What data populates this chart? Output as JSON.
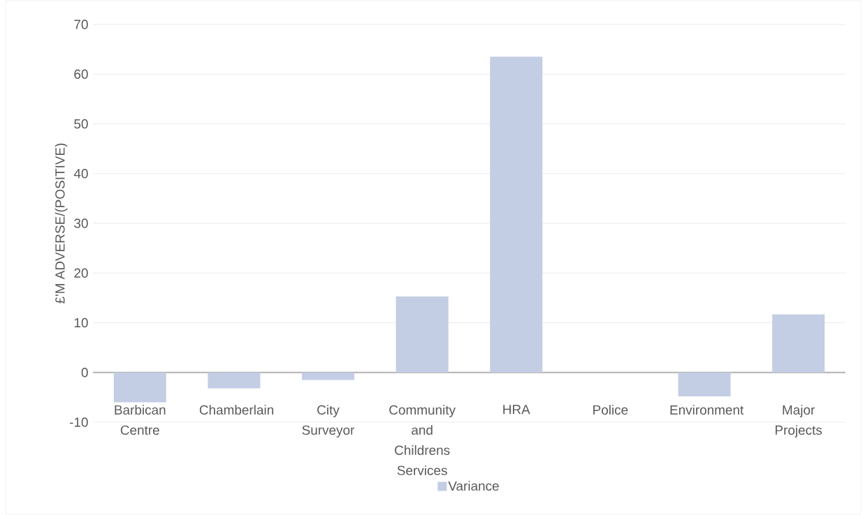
{
  "chart_data": {
    "type": "bar",
    "ylabel": "£'M ADVERSE/(POSITIVE)",
    "categories": [
      "Barbican Centre",
      "Chamberlain",
      "City Surveyor",
      "Community and Childrens Services",
      "HRA",
      "Police",
      "Environment",
      "Major Projects"
    ],
    "series": [
      {
        "name": "Variance",
        "color": "#c3cde3",
        "values": [
          -6.0,
          -3.2,
          -1.5,
          15.3,
          63.5,
          0,
          -4.8,
          11.7
        ]
      }
    ],
    "ylim": [
      -10,
      70
    ],
    "yticks": [
      -10,
      0,
      10,
      20,
      30,
      40,
      50,
      60,
      70
    ],
    "grid": "y",
    "legend": "bottom"
  }
}
